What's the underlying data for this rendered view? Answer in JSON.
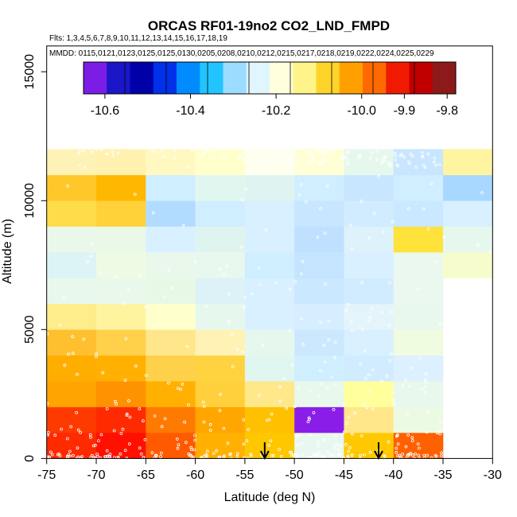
{
  "chart_data": {
    "type": "heatmap",
    "title": "ORCAS RF01-19no2 CO2_LND_FMPD",
    "flights_line": "Flts: 1,3,4,5,6,7,8,9,10,11,12,13,14,15,16,17,18,19",
    "dates_line": "MMDD: 0115,0121,0123,0125,0125,0130,0205,0208,0210,0212,0215,0217,0218,0219,0222,0224,0225,0229",
    "xlabel": "Latitude (deg N)",
    "ylabel": "Altitude (m)",
    "xlim": [
      -75,
      -30
    ],
    "ylim": [
      0,
      16000
    ],
    "x_ticks": [
      -75,
      -70,
      -65,
      -60,
      -55,
      -50,
      -45,
      -40,
      -35,
      -30
    ],
    "y_ticks": [
      0,
      5000,
      10000,
      15000
    ],
    "colorbar": {
      "range": [
        -10.65,
        -9.78
      ],
      "tick_values": [
        -10.6,
        -10.4,
        -10.2,
        -10.0,
        -9.9,
        -9.8
      ],
      "tick_labels": [
        "-10.6",
        "-10.4",
        "-10.2",
        "-10.0",
        "-9.9",
        "-9.8"
      ],
      "colors": [
        {
          "color": "#7c1de6"
        },
        {
          "color": "#1a17c8"
        },
        {
          "color": "#0000a8"
        },
        {
          "color": "#0030e8"
        },
        {
          "color": "#008cff"
        },
        {
          "color": "#22c4ff"
        },
        {
          "color": "#9cdcff"
        },
        {
          "color": "#e0f6ff"
        },
        {
          "color": "#ffffde"
        },
        {
          "color": "#fff48a"
        },
        {
          "color": "#ffd42a"
        },
        {
          "color": "#ffa000"
        },
        {
          "color": "#ff6a00"
        },
        {
          "color": "#f01a00"
        },
        {
          "color": "#c00000"
        },
        {
          "color": "#8c1a1a"
        }
      ]
    },
    "lat_edges": [
      -75,
      -70,
      -65,
      -60,
      -55,
      -50,
      -45,
      -40,
      -35,
      -30
    ],
    "alt_step": 1000,
    "cells": [
      [
        "#ff2a00",
        "#ff1000",
        "#ff5a00",
        "#ffb000",
        "#ffc700",
        "#e8f8f0",
        "#ffc800",
        "#ff6000",
        null
      ],
      [
        "#ff3a00",
        "#ff2a00",
        "#ff7a00",
        "#ffa600",
        "#ffc000",
        "#8a1ee8",
        "#ffe78a",
        "#ecfae4",
        null
      ],
      [
        "#ffa400",
        "#ff9200",
        "#ffb000",
        "#ffd03c",
        "#ffe88a",
        "#e8f8ec",
        "#ffff9c",
        "#e8f8ec",
        null
      ],
      [
        "#ffae00",
        "#ffb000",
        "#ffd04a",
        "#ffd240",
        "#e0f6f0",
        "#cfeeff",
        "#d2ecff",
        "#ddf0ff",
        null
      ],
      [
        "#ffc030",
        "#ffd04a",
        "#ffe68a",
        "#fff2b4",
        "#e6f8ee",
        "#cce8ff",
        "#d8f0ff",
        "#f0fce0",
        null
      ],
      [
        "#ffec8a",
        "#fff3a0",
        "#ffffcc",
        "#e6f8ee",
        "#d8f0ff",
        "#d6eeff",
        "#e4f4fb",
        "#e8f8ee",
        null
      ],
      [
        "#e8f8ec",
        "#eaf8ec",
        "#e8f8e6",
        "#ddf2f6",
        "#d8f0ff",
        "#cae8ff",
        "#d2ecff",
        "#eaf8f0",
        null
      ],
      [
        "#dcf4f6",
        "#eefae4",
        "#eaf8ec",
        "#e8f8ee",
        "#cfeeff",
        "#c4e4ff",
        "#d8f0ff",
        "#eaf8f0",
        "#f6fccc"
      ],
      [
        "#eaf8ec",
        "#eaf8e8",
        "#d8f0ff",
        "#dff4ee",
        "#d8f0ff",
        "#bfe0ff",
        "#ddf2fa",
        "#ffe23a",
        "#e6f8ee"
      ],
      [
        "#ffdc4a",
        "#ffd23a",
        "#b2dcff",
        "#cfeeff",
        "#d8f0ff",
        "#c8e6ff",
        "#d2ecff",
        "#cae8ff",
        "#d8f0ff"
      ],
      [
        "#ffc82a",
        "#ffb800",
        "#cfeeff",
        "#e2f6f0",
        "#dff4f0",
        "#d0eeff",
        "#c8e6ff",
        "#d0eeff",
        "#a8d8ff"
      ],
      [
        "#fff2b6",
        "#fff2b0",
        "#fff8c0",
        "#ffffcc",
        "#fffff0",
        "#ffffd6",
        "#e6f8ee",
        "#c8e6ff",
        "#fff4a0"
      ]
    ],
    "markers": {
      "type": "down-arrow",
      "latitudes": [
        -53,
        -41.5
      ]
    }
  }
}
